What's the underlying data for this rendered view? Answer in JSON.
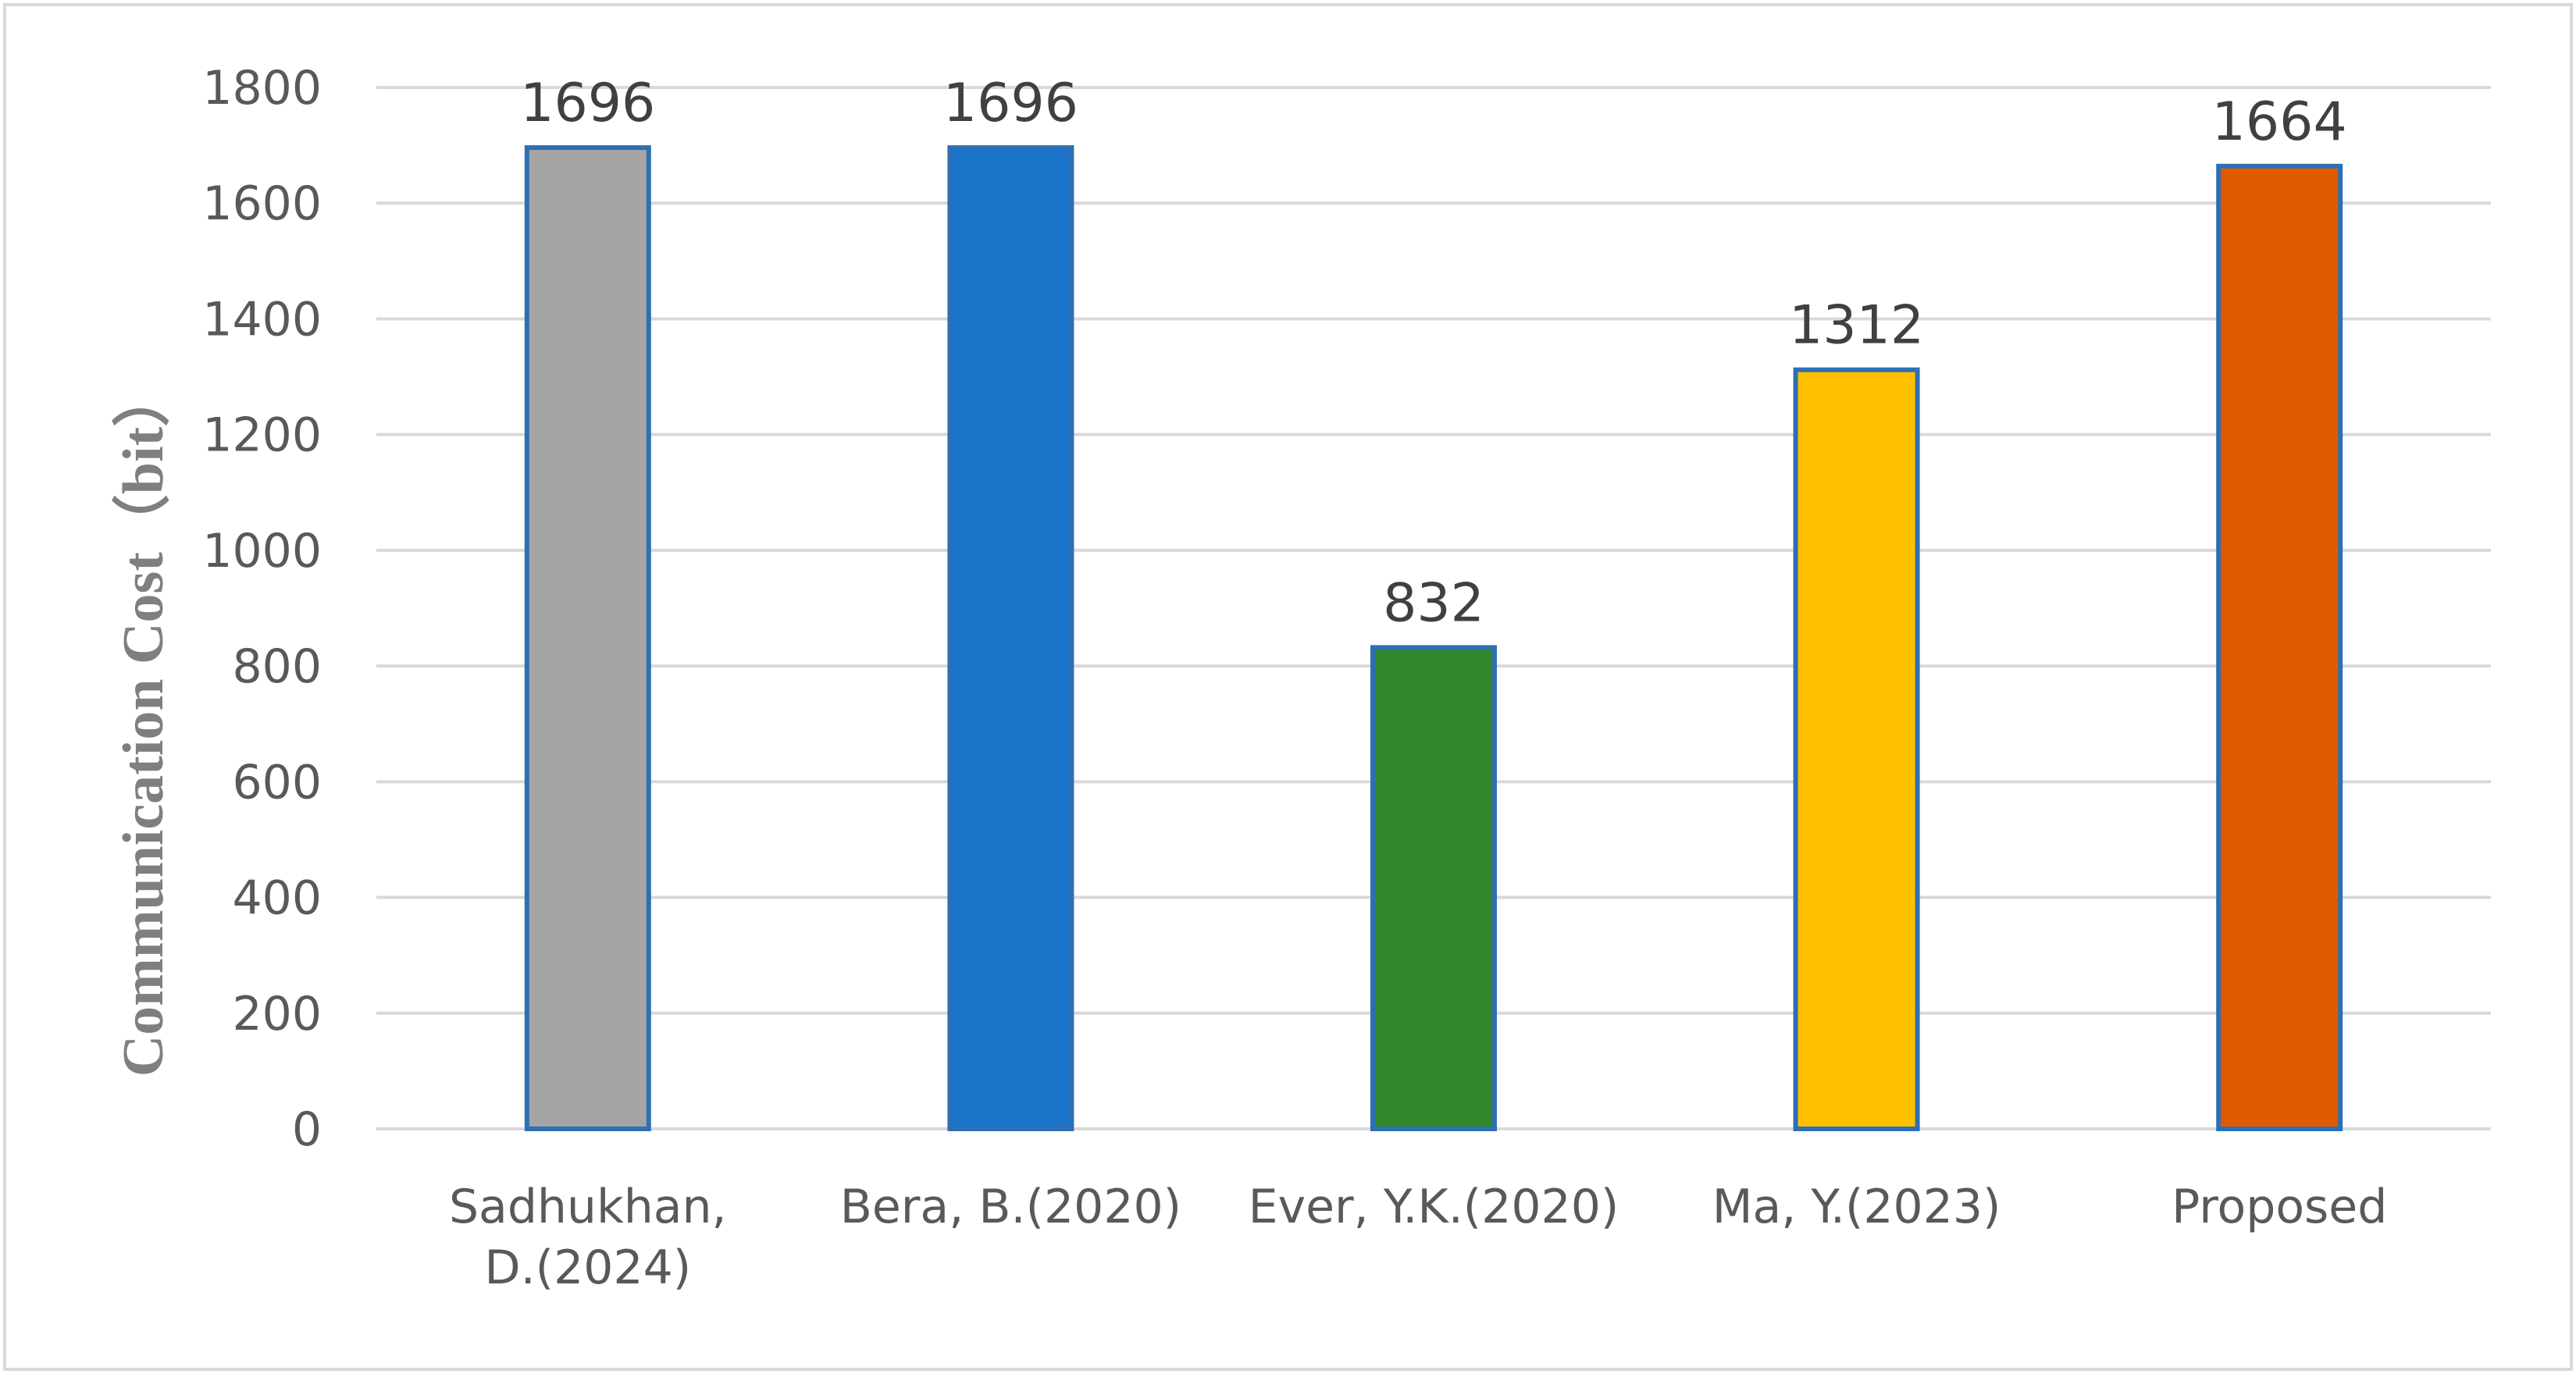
{
  "chart_data": {
    "type": "bar",
    "title": "",
    "xlabel": "",
    "ylabel": "Communication Cost（bit）",
    "ylim": [
      0,
      1800
    ],
    "yticks": [
      0,
      200,
      400,
      600,
      800,
      1000,
      1200,
      1400,
      1600,
      1800
    ],
    "grid": true,
    "legend": "none",
    "categories": [
      [
        "Sadhukhan,",
        "D.(2024)"
      ],
      [
        "Bera, B.(2020)"
      ],
      [
        "Ever, Y.K.(2020)"
      ],
      [
        "Ma, Y.(2023)"
      ],
      [
        "Proposed"
      ]
    ],
    "values": [
      1696,
      1696,
      832,
      1312,
      1664
    ],
    "data_labels": [
      "1696",
      "1696",
      "832",
      "1312",
      "1664"
    ],
    "colors": [
      "#a5a5a5",
      "#1a73c9",
      "#31862b",
      "#ffc000",
      "#e05a00"
    ],
    "bar_outline_color": "#2e6fb3",
    "grid_color": "#d9d9d9"
  }
}
